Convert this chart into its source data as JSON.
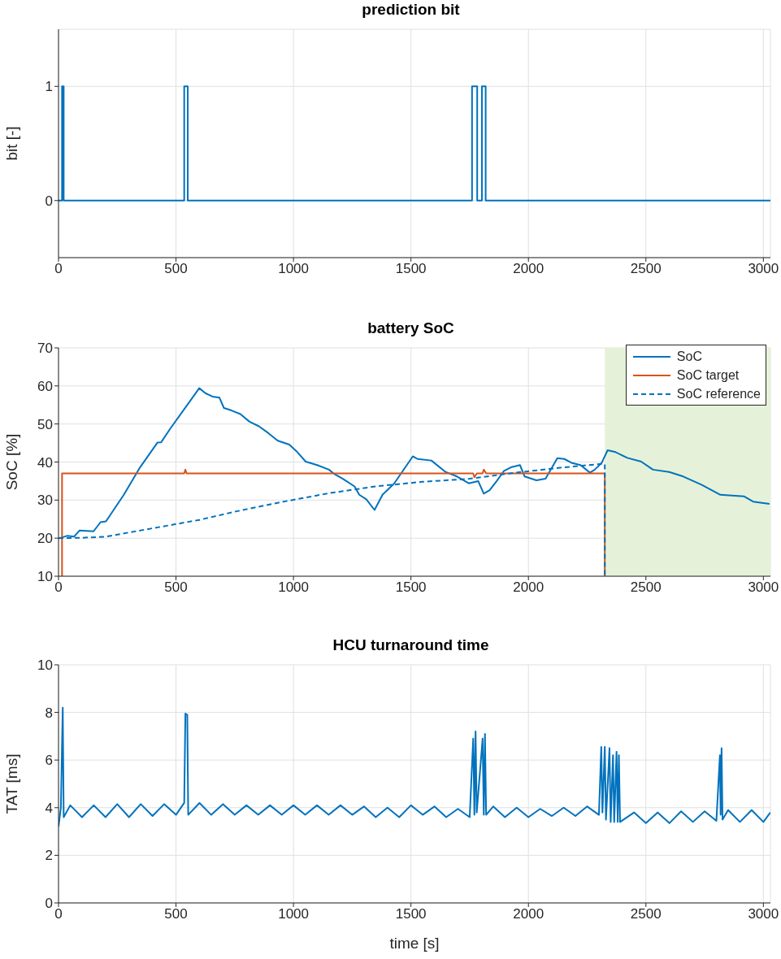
{
  "chart_data": [
    {
      "type": "step",
      "title": "prediction bit",
      "ylabel": "bit [-]",
      "xlim": [
        0,
        3030
      ],
      "xticks": [
        0,
        500,
        1000,
        1500,
        2000,
        2500,
        3000
      ],
      "ylim": [
        -0.5,
        1.5
      ],
      "yticks": [
        0,
        1
      ],
      "grid": true,
      "marker": "none",
      "series": [
        {
          "color": "#0072bd",
          "x": [
            0,
            15,
            22,
            535,
            550,
            1760,
            1782,
            1802,
            1818,
            3030
          ],
          "values": [
            0,
            1,
            0,
            1,
            0,
            1,
            0,
            1,
            0,
            0
          ]
        }
      ]
    },
    {
      "type": "line",
      "title": "battery SoC",
      "ylabel": "SoC [%]",
      "xlim": [
        0,
        3030
      ],
      "xticks": [
        0,
        500,
        1000,
        1500,
        2000,
        2500,
        3000
      ],
      "ylim": [
        10,
        70
      ],
      "yticks": [
        10,
        20,
        30,
        40,
        50,
        60,
        70
      ],
      "grid": true,
      "legend": "top right",
      "marker": "none",
      "bands": [
        {
          "axis": "x",
          "from": 2325,
          "to": 3030,
          "color": "#e5f2d9"
        }
      ],
      "series": [
        {
          "name": "SoC",
          "color": "#0072bd",
          "line_style": "solid",
          "x": [
            4,
            36,
            66,
            89,
            149,
            179,
            202,
            278,
            347,
            421,
            437,
            476,
            599,
            625,
            655,
            685,
            704,
            734,
            774,
            813,
            853,
            893,
            933,
            982,
            1012,
            1052,
            1101,
            1151,
            1175,
            1210,
            1260,
            1280,
            1310,
            1345,
            1379,
            1429,
            1508,
            1528,
            1587,
            1647,
            1696,
            1746,
            1786,
            1810,
            1835,
            1865,
            1895,
            1925,
            1964,
            1984,
            2034,
            2073,
            2123,
            2153,
            2183,
            2222,
            2262,
            2282,
            2312,
            2337,
            2371,
            2421,
            2480,
            2530,
            2599,
            2659,
            2738,
            2817,
            2917,
            2956,
            3026
          ],
          "values": [
            20.0,
            20.6,
            20.4,
            22.0,
            21.8,
            24.2,
            24.4,
            31.4,
            38.6,
            45.1,
            45.2,
            48.8,
            59.4,
            58.1,
            57.2,
            56.9,
            54.2,
            53.6,
            52.6,
            50.6,
            49.4,
            47.6,
            45.6,
            44.6,
            42.9,
            40.1,
            39.2,
            38.0,
            36.8,
            35.6,
            33.6,
            31.4,
            30.2,
            27.4,
            31.4,
            34.4,
            41.5,
            40.8,
            40.4,
            37.4,
            36.2,
            34.4,
            35.0,
            31.7,
            32.6,
            35.0,
            37.6,
            38.6,
            39.2,
            36.2,
            35.2,
            35.6,
            41.0,
            40.8,
            39.8,
            39.2,
            37.2,
            38.0,
            39.8,
            43.1,
            42.6,
            41.1,
            40.1,
            38.0,
            37.4,
            36.2,
            34.0,
            31.4,
            31.0,
            29.6,
            29.0
          ]
        },
        {
          "name": "SoC target",
          "color": "#d95319",
          "line_style": "solid",
          "x": [
            15,
            15,
            535,
            540,
            545,
            1765,
            1770,
            1780,
            1805,
            1810,
            1820,
            2325,
            2325
          ],
          "values": [
            10,
            37,
            37,
            38,
            37,
            37,
            36,
            37,
            37,
            38,
            37,
            37,
            10
          ]
        },
        {
          "name": "SoC reference",
          "color": "#0072bd",
          "line_style": "dashed",
          "x": [
            0,
            100,
            202,
            300,
            437,
            600,
            754,
            950,
            1151,
            1350,
            1548,
            1750,
            1944,
            2150,
            2312,
            2325,
            2325
          ],
          "values": [
            20,
            20.1,
            20.4,
            21.5,
            23,
            24.8,
            27,
            29.5,
            31.8,
            33.6,
            34.8,
            35.6,
            37.2,
            38.6,
            39.5,
            39.5,
            10
          ]
        }
      ]
    },
    {
      "type": "line",
      "title": "HCU turnaround time",
      "xlabel": "time [s]",
      "ylabel": "TAT [ms]",
      "xlim": [
        0,
        3030
      ],
      "xticks": [
        0,
        500,
        1000,
        1500,
        2000,
        2500,
        3000
      ],
      "ylim": [
        0,
        10
      ],
      "yticks": [
        0,
        2,
        4,
        6,
        8,
        10
      ],
      "grid": true,
      "marker": "none",
      "series": [
        {
          "color": "#0072bd",
          "x": [
            0,
            10,
            18,
            22,
            50,
            100,
            150,
            200,
            250,
            300,
            350,
            400,
            450,
            500,
            535,
            540,
            548,
            552,
            600,
            650,
            700,
            750,
            800,
            850,
            900,
            950,
            1000,
            1050,
            1100,
            1150,
            1200,
            1250,
            1300,
            1350,
            1400,
            1450,
            1500,
            1550,
            1600,
            1650,
            1700,
            1750,
            1765,
            1770,
            1775,
            1780,
            1805,
            1810,
            1815,
            1820,
            1850,
            1900,
            1950,
            2000,
            2050,
            2100,
            2150,
            2200,
            2250,
            2300,
            2310,
            2315,
            2325,
            2330,
            2345,
            2350,
            2360,
            2365,
            2375,
            2380,
            2385,
            2390,
            2450,
            2500,
            2550,
            2600,
            2650,
            2700,
            2750,
            2800,
            2815,
            2818,
            2822,
            2826,
            2850,
            2900,
            2950,
            3000,
            3030
          ],
          "values": [
            3.2,
            4.0,
            8.2,
            3.6,
            4.1,
            3.6,
            4.1,
            3.6,
            4.15,
            3.6,
            4.15,
            3.65,
            4.15,
            3.7,
            4.2,
            7.95,
            7.9,
            3.7,
            4.2,
            3.7,
            4.15,
            3.7,
            4.1,
            3.7,
            4.1,
            3.7,
            4.1,
            3.7,
            4.1,
            3.7,
            4.1,
            3.7,
            4.05,
            3.6,
            4.0,
            3.6,
            4.1,
            3.7,
            4.05,
            3.6,
            3.95,
            3.6,
            6.9,
            3.7,
            7.2,
            3.8,
            6.9,
            3.7,
            7.1,
            3.7,
            4.05,
            3.6,
            4.0,
            3.6,
            3.95,
            3.65,
            4.0,
            3.65,
            4.05,
            3.7,
            6.55,
            3.8,
            6.55,
            3.5,
            6.5,
            3.4,
            6.2,
            3.4,
            6.35,
            3.4,
            6.2,
            3.4,
            3.8,
            3.35,
            3.8,
            3.35,
            3.85,
            3.4,
            3.85,
            3.45,
            6.2,
            3.7,
            6.5,
            3.5,
            3.9,
            3.4,
            3.9,
            3.4,
            3.8
          ]
        }
      ]
    }
  ]
}
